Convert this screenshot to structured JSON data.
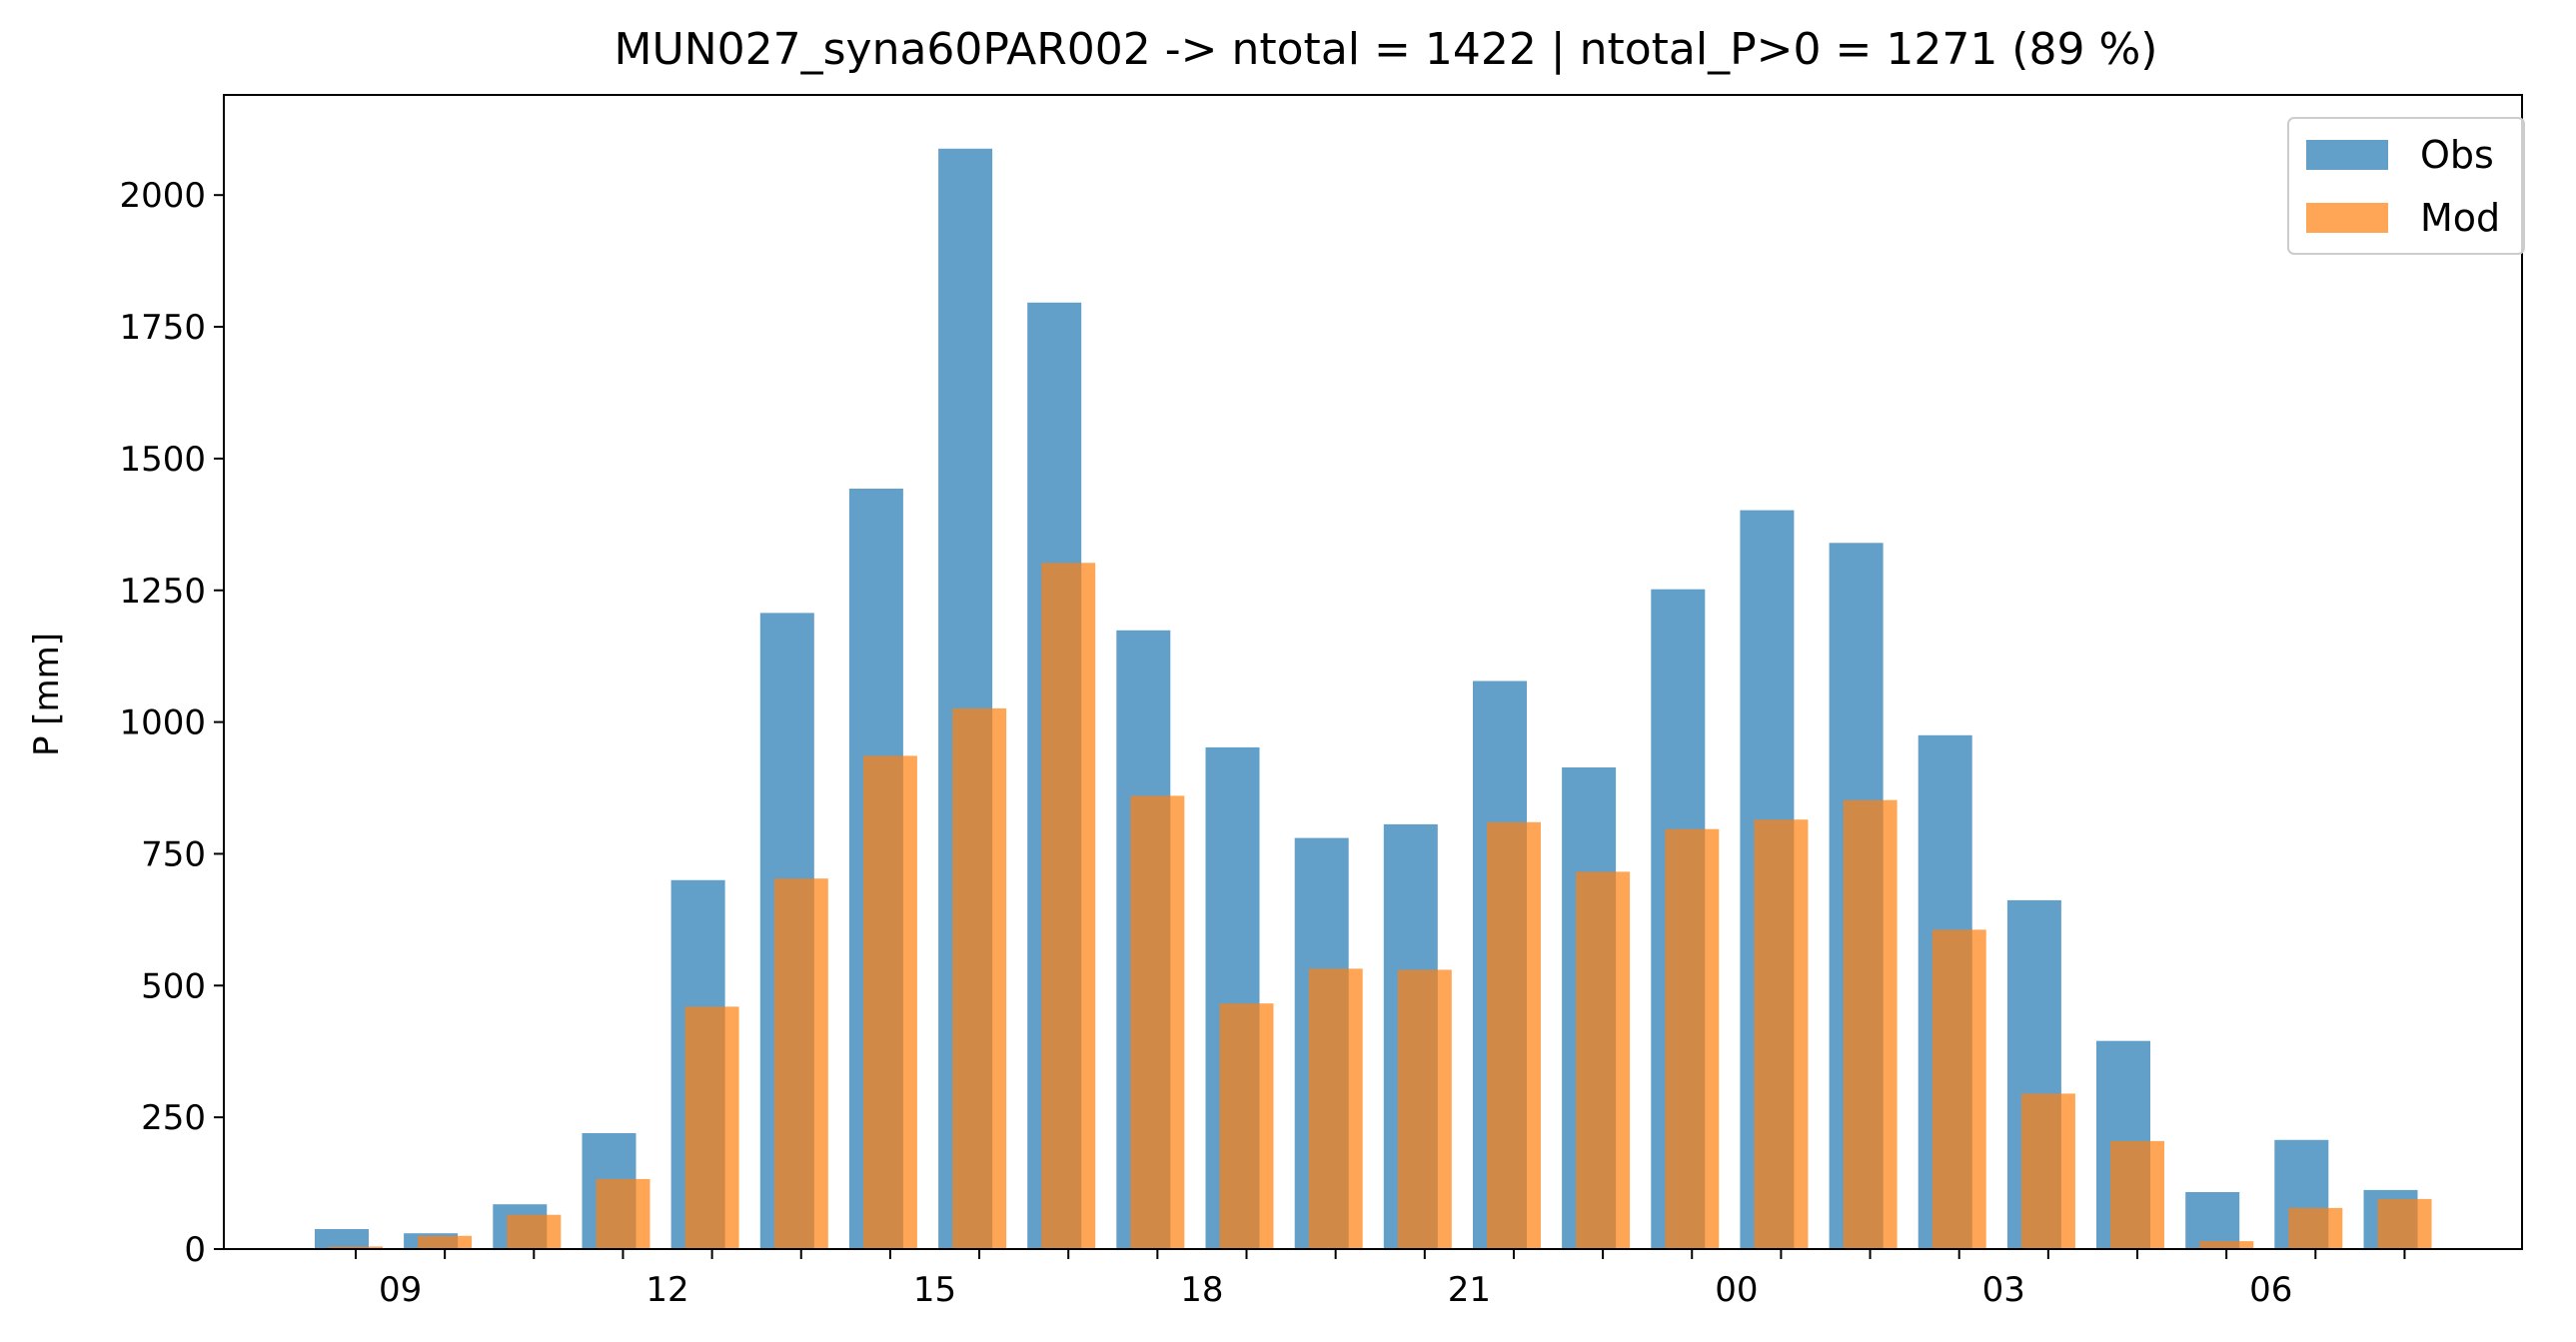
{
  "chart_data": {
    "type": "bar",
    "title": "MUN027_syna60PAR002 -> ntotal = 1422 | ntotal_P>0 = 1271 (89 %)",
    "xlabel": "",
    "ylabel": "P [mm]",
    "categories": [
      "08",
      "09",
      "10",
      "11",
      "12",
      "13",
      "14",
      "15",
      "16",
      "17",
      "18",
      "19",
      "20",
      "21",
      "22",
      "23",
      "00",
      "01",
      "02",
      "03",
      "04",
      "05",
      "06",
      "07"
    ],
    "x_tick_labels": [
      "09",
      "12",
      "15",
      "18",
      "21",
      "00",
      "03",
      "06"
    ],
    "y_ticks": [
      0,
      250,
      500,
      750,
      1000,
      1250,
      1500,
      1750,
      2000
    ],
    "ylim": [
      0,
      2190
    ],
    "grid": false,
    "legend_position": "top-right",
    "series": [
      {
        "name": "Obs",
        "color": "#1f77b4",
        "values": [
          38,
          30,
          85,
          220,
          700,
          1207,
          1443,
          2088,
          1796,
          1174,
          952,
          780,
          806,
          1078,
          914,
          1252,
          1402,
          1340,
          975,
          662,
          395,
          108,
          207,
          112
        ]
      },
      {
        "name": "Mod",
        "color": "#ff7f0e",
        "values": [
          5,
          25,
          65,
          133,
          460,
          703,
          936,
          1026,
          1302,
          860,
          466,
          532,
          530,
          810,
          716,
          797,
          815,
          852,
          606,
          295,
          205,
          15,
          78,
          95
        ]
      }
    ]
  }
}
